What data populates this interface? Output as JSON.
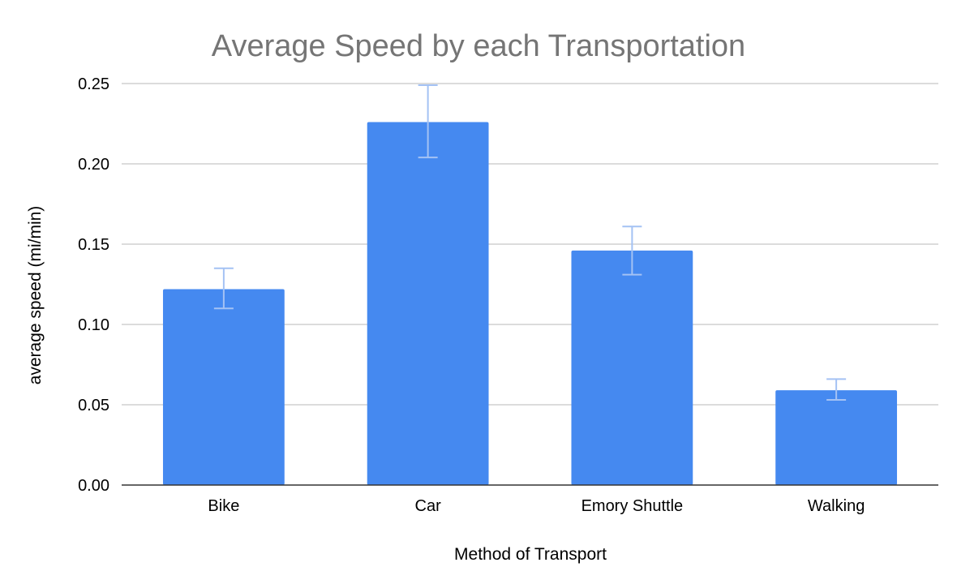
{
  "chart_data": {
    "type": "bar",
    "title": "Average Speed by each Transportation",
    "xlabel": "Method of Transport",
    "ylabel": "average speed (mi/min)",
    "categories": [
      "Bike",
      "Car",
      "Emory Shuttle",
      "Walking"
    ],
    "values": [
      0.122,
      0.226,
      0.146,
      0.059
    ],
    "error_bars": {
      "low": [
        0.11,
        0.204,
        0.131,
        0.053
      ],
      "high": [
        0.135,
        0.249,
        0.161,
        0.066
      ]
    },
    "ylim": [
      0,
      0.25
    ],
    "yticks": [
      "0.00",
      "0.05",
      "0.10",
      "0.15",
      "0.20",
      "0.25"
    ],
    "grid": true,
    "legend": "none",
    "colors": {
      "bar": "#4589f0",
      "error_bar": "#a4c2f4",
      "grid": "#c8c8c8",
      "title": "#757575"
    }
  }
}
